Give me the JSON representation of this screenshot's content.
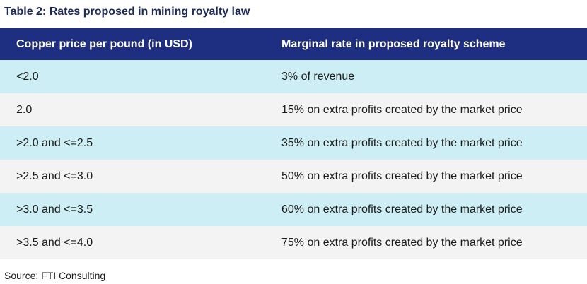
{
  "title": "Table 2: Rates proposed in mining royalty law",
  "table": {
    "headers": [
      "Copper price per pound (in USD)",
      "Marginal rate in proposed royalty scheme"
    ],
    "rows": [
      [
        "<2.0",
        "3% of revenue"
      ],
      [
        "2.0",
        "15% on extra profits created by the market price"
      ],
      [
        ">2.0 and <=2.5",
        "35% on extra profits created by the market price"
      ],
      [
        ">2.5 and <=3.0",
        "50% on extra profits created by the market price"
      ],
      [
        ">3.0 and <=3.5",
        "60% on extra profits created by the market price"
      ],
      [
        ">3.5 and <=4.0",
        "75% on extra profits created by the market price"
      ]
    ]
  },
  "source": "Source: FTI Consulting",
  "colors": {
    "title": "#1c2a5c",
    "header_bg": "#1e2f82",
    "row_alt_blue": "#cdeef4",
    "row_alt_grey": "#f3f3f3"
  }
}
